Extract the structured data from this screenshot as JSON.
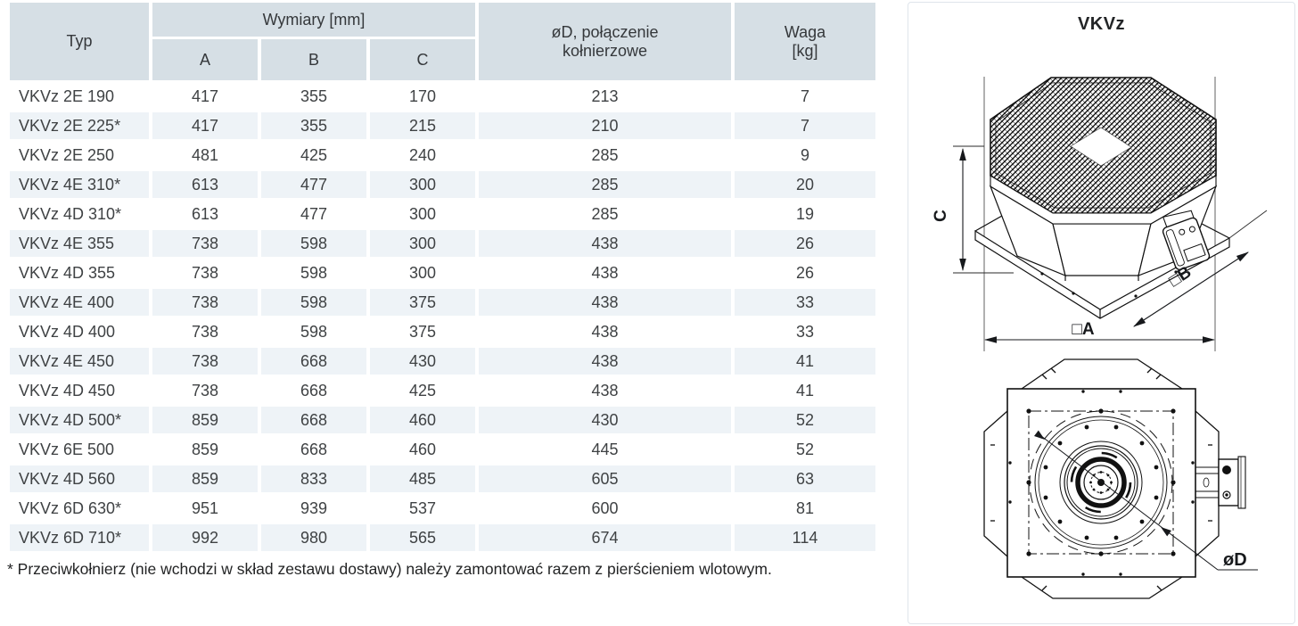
{
  "table": {
    "col_headers": {
      "typ": "Typ",
      "wymiary": "Wymiary [mm]",
      "a": "A",
      "b": "B",
      "c": "C",
      "od_line1": "øD, połączenie",
      "od_line2": "kołnierzowe",
      "waga_line1": "Waga",
      "waga_line2": "[kg]"
    },
    "rows": [
      [
        "VKVz 2E 190",
        "417",
        "355",
        "170",
        "213",
        "7"
      ],
      [
        "VKVz 2E 225*",
        "417",
        "355",
        "215",
        "210",
        "7"
      ],
      [
        "VKVz 2E 250",
        "481",
        "425",
        "240",
        "285",
        "9"
      ],
      [
        "VKVz 4E 310*",
        "613",
        "477",
        "300",
        "285",
        "20"
      ],
      [
        "VKVz 4D 310*",
        "613",
        "477",
        "300",
        "285",
        "19"
      ],
      [
        "VKVz 4E 355",
        "738",
        "598",
        "300",
        "438",
        "26"
      ],
      [
        "VKVz 4D 355",
        "738",
        "598",
        "300",
        "438",
        "26"
      ],
      [
        "VKVz 4E 400",
        "738",
        "598",
        "375",
        "438",
        "33"
      ],
      [
        "VKVz 4D 400",
        "738",
        "598",
        "375",
        "438",
        "33"
      ],
      [
        "VKVz 4E 450",
        "738",
        "668",
        "430",
        "438",
        "41"
      ],
      [
        "VKVz 4D 450",
        "738",
        "668",
        "425",
        "438",
        "41"
      ],
      [
        "VKVz 4D 500*",
        "859",
        "668",
        "460",
        "430",
        "52"
      ],
      [
        "VKVz 6E 500",
        "859",
        "668",
        "460",
        "445",
        "52"
      ],
      [
        "VKVz 4D 560",
        "859",
        "833",
        "485",
        "605",
        "63"
      ],
      [
        "VKVz 6D 630*",
        "951",
        "939",
        "537",
        "600",
        "81"
      ],
      [
        "VKVz 6D 710*",
        "992",
        "980",
        "565",
        "674",
        "114"
      ]
    ]
  },
  "footnote": "* Przeciwkołnierz (nie wchodzi w skład zestawu dostawy) należy zamontować razem z pierścieniem wlotowym.",
  "drawing": {
    "title": "VKVz",
    "dim_a": "□A",
    "dim_b": "□B",
    "dim_c": "C",
    "dim_d": "øD"
  },
  "colors": {
    "header_bg": "#d6dfe5",
    "row_alt_bg": "#eef3f7",
    "text": "#3f4244",
    "line": "#1a1a1a",
    "panel_border": "#dfe5eb"
  }
}
